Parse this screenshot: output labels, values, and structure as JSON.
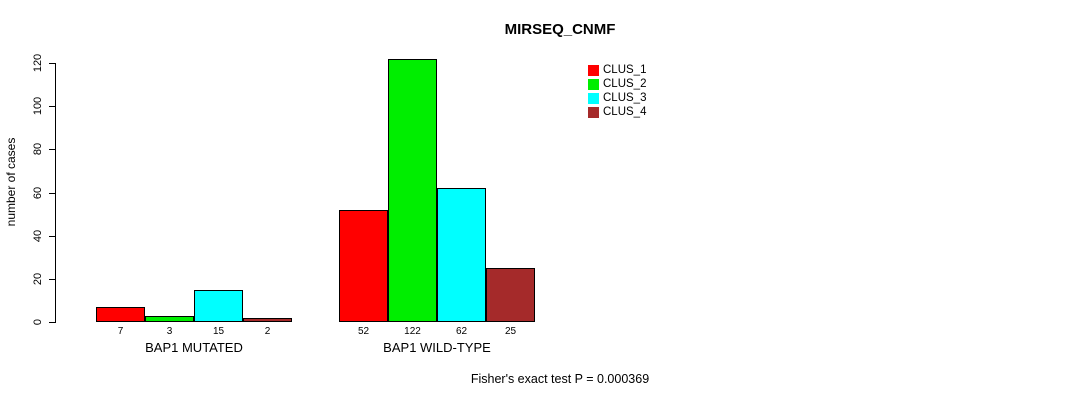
{
  "title": "MIRSEQ_CNMF",
  "y_axis_label": "number of cases",
  "footer": "Fisher's exact test P = 0.000369",
  "chart_data": {
    "type": "bar",
    "title": "MIRSEQ_CNMF",
    "xlabel": "",
    "ylabel": "number of cases",
    "ylim": [
      0,
      120
    ],
    "yticks": [
      0,
      20,
      40,
      60,
      80,
      100,
      120
    ],
    "grid": false,
    "categories": [
      "BAP1 MUTATED",
      "BAP1 WILD-TYPE"
    ],
    "series": [
      {
        "name": "CLUS_1",
        "color": "#FF0000",
        "values": [
          7,
          52
        ]
      },
      {
        "name": "CLUS_2",
        "color": "#00EE00",
        "values": [
          3,
          122
        ]
      },
      {
        "name": "CLUS_3",
        "color": "#00FFFF",
        "values": [
          15,
          62
        ]
      },
      {
        "name": "CLUS_4",
        "color": "#A52A2A",
        "values": [
          2,
          25
        ]
      }
    ],
    "bar_value_labels": [
      [
        "7",
        "3",
        "15",
        "2"
      ],
      [
        "52",
        "122",
        "62",
        "25"
      ]
    ],
    "legend_position": "top-right",
    "annotation": "Fisher's exact test P = 0.000369"
  }
}
